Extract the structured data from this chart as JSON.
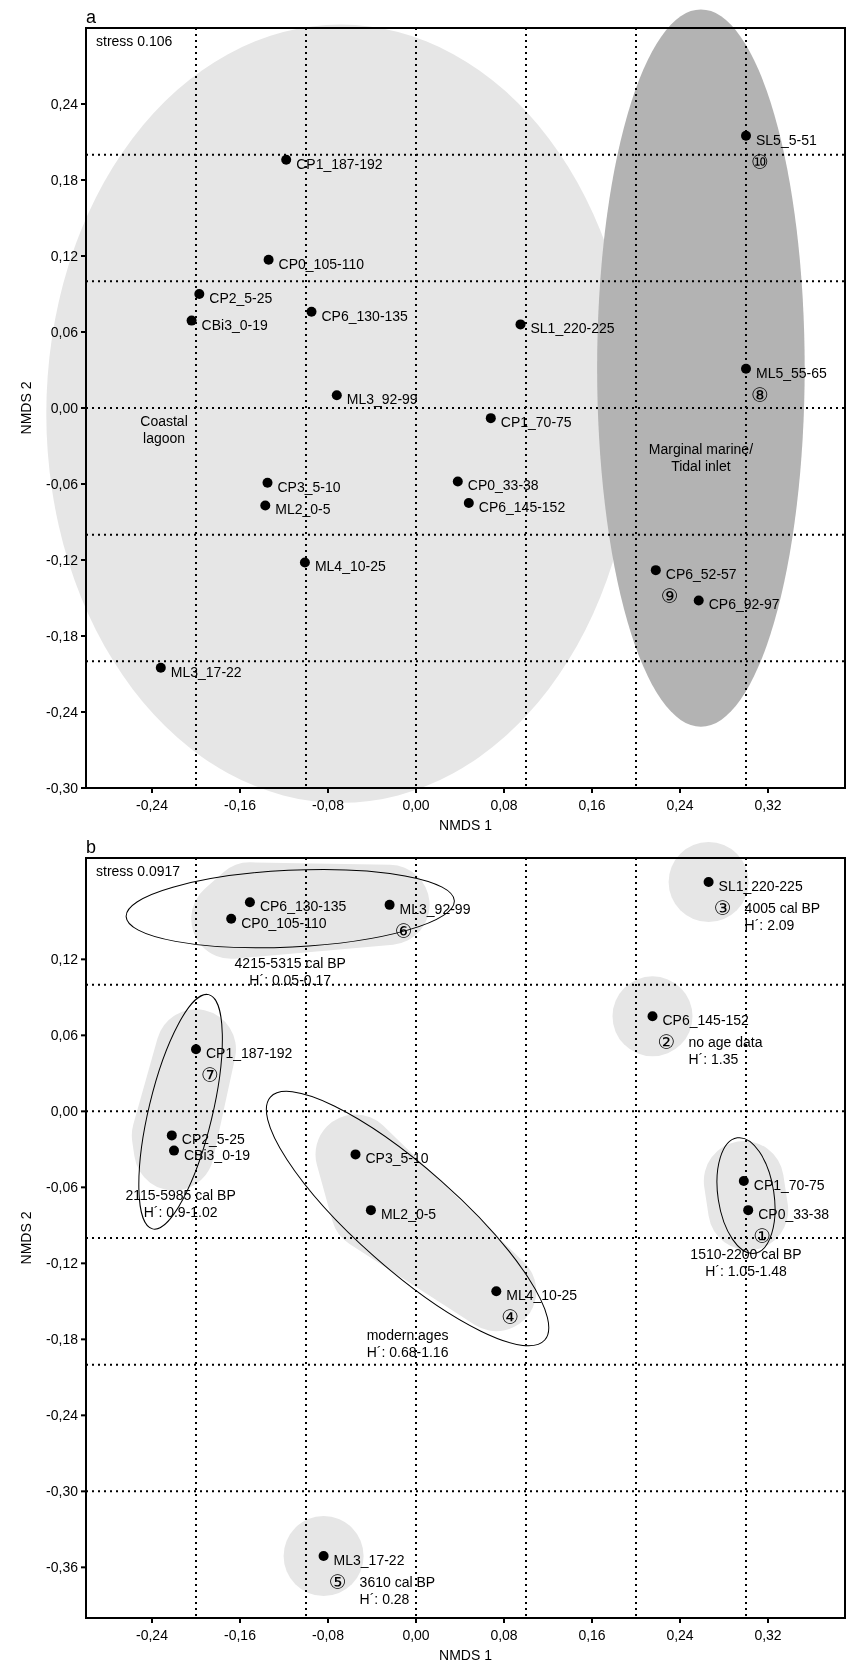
{
  "chart_data": [
    {
      "type": "scatter",
      "title": "a",
      "xlabel": "NMDS 1",
      "ylabel": "NMDS 2",
      "xlim": [
        -0.3,
        0.39
      ],
      "ylim": [
        -0.3,
        0.3
      ],
      "xticks": [
        {
          "value": -0.24,
          "label": "-0,24"
        },
        {
          "value": -0.16,
          "label": "-0,16"
        },
        {
          "value": -0.08,
          "label": "-0,08"
        },
        {
          "value": 0,
          "label": "0,00"
        },
        {
          "value": 0.08,
          "label": "0,08"
        },
        {
          "value": 0.16,
          "label": "0,16"
        },
        {
          "value": 0.24,
          "label": "0,24"
        },
        {
          "value": 0.32,
          "label": "0,32"
        }
      ],
      "yticks": [
        {
          "value": -0.3,
          "label": "-0,30"
        },
        {
          "value": -0.24,
          "label": "-0,24"
        },
        {
          "value": -0.18,
          "label": "-0,18"
        },
        {
          "value": -0.12,
          "label": "-0,12"
        },
        {
          "value": -0.06,
          "label": "-0,06"
        },
        {
          "value": 0,
          "label": "0,00"
        },
        {
          "value": 0.06,
          "label": "0,06"
        },
        {
          "value": 0.12,
          "label": "0,12"
        },
        {
          "value": 0.18,
          "label": "0,18"
        },
        {
          "value": 0.24,
          "label": "0,24"
        }
      ],
      "marker": "circle",
      "series": [
        {
          "color": "#000000",
          "x": [
            -0.118,
            -0.134,
            -0.197,
            -0.204,
            -0.095,
            0.095,
            -0.072,
            0.068,
            -0.135,
            -0.137,
            0.038,
            0.048,
            -0.101,
            -0.232
          ],
          "values": [
            0.196,
            0.117,
            0.09,
            0.069,
            0.076,
            0.066,
            0.01,
            -0.008,
            -0.059,
            -0.077,
            -0.058,
            -0.075,
            -0.122,
            -0.205
          ],
          "value_labels": [
            "CP1_187-192",
            "CP0_105-110",
            "CP2_5-25",
            "CBi3_0-19",
            "CP6_130-135",
            "SL1_220-225",
            "ML3_92-99",
            "CP1_70-75",
            "CP3_5-10",
            "ML2_0-5",
            "CP0_33-38",
            "CP6_145-152",
            "ML4_10-25",
            "ML3_17-22"
          ]
        },
        {
          "name": "⑩",
          "color": "#000000",
          "x": [
            0.3
          ],
          "values": [
            0.215
          ],
          "value_labels": [
            "SL5_5-51"
          ]
        },
        {
          "name": "⑧",
          "color": "#000000",
          "x": [
            0.3
          ],
          "values": [
            0.031
          ],
          "value_labels": [
            "ML5_55-65"
          ]
        },
        {
          "name": "⑨",
          "color": "#000000",
          "x": [
            0.218,
            0.257
          ],
          "values": [
            -0.128,
            -0.152
          ],
          "value_labels": [
            "CP6_52-57",
            "CP6_92-97"
          ]
        }
      ],
      "ref_lines": [
        {
          "axis": "x",
          "value": -0.2,
          "line_style": "dotted",
          "color": "#000000"
        },
        {
          "axis": "x",
          "value": -0.1,
          "line_style": "dotted",
          "color": "#000000"
        },
        {
          "axis": "x",
          "value": 0,
          "line_style": "dotted",
          "color": "#000000"
        },
        {
          "axis": "x",
          "value": 0.1,
          "line_style": "dotted",
          "color": "#000000"
        },
        {
          "axis": "x",
          "value": 0.2,
          "line_style": "dotted",
          "color": "#000000"
        },
        {
          "axis": "x",
          "value": 0.3,
          "line_style": "dotted",
          "color": "#000000"
        },
        {
          "axis": "y",
          "value": -0.2,
          "line_style": "dotted",
          "color": "#000000"
        },
        {
          "axis": "y",
          "value": -0.1,
          "line_style": "dotted",
          "color": "#000000"
        },
        {
          "axis": "y",
          "value": 0,
          "line_style": "dotted",
          "color": "#000000"
        },
        {
          "axis": "y",
          "value": 0.1,
          "line_style": "dotted",
          "color": "#000000"
        },
        {
          "axis": "y",
          "value": 0.2,
          "line_style": "dotted",
          "color": "#000000"
        }
      ],
      "annotations": [
        "stress 0.106",
        "Coastal\nlagoon",
        "Marginal marine/\nTidal inlet"
      ]
    },
    {
      "type": "scatter",
      "title": "b",
      "xlabel": "NMDS 1",
      "ylabel": "NMDS 2",
      "xlim": [
        -0.3,
        0.39
      ],
      "ylim": [
        -0.4,
        0.2
      ],
      "xticks": [
        {
          "value": -0.24,
          "label": "-0,24"
        },
        {
          "value": -0.16,
          "label": "-0,16"
        },
        {
          "value": -0.08,
          "label": "-0,08"
        },
        {
          "value": 0,
          "label": "0,00"
        },
        {
          "value": 0.08,
          "label": "0,08"
        },
        {
          "value": 0.16,
          "label": "0,16"
        },
        {
          "value": 0.24,
          "label": "0,24"
        },
        {
          "value": 0.32,
          "label": "0,32"
        }
      ],
      "yticks": [
        {
          "value": -0.36,
          "label": "-0,36"
        },
        {
          "value": -0.3,
          "label": "-0,30"
        },
        {
          "value": -0.24,
          "label": "-0,24"
        },
        {
          "value": -0.18,
          "label": "-0,18"
        },
        {
          "value": -0.12,
          "label": "-0,12"
        },
        {
          "value": -0.06,
          "label": "-0,06"
        },
        {
          "value": 0,
          "label": "0,00"
        },
        {
          "value": 0.06,
          "label": "0,06"
        },
        {
          "value": 0.12,
          "label": "0,12"
        }
      ],
      "marker": "circle",
      "series": [
        {
          "name": "①",
          "color": "#000000",
          "x": [
            0.302,
            0.298
          ],
          "values": [
            -0.078,
            -0.055
          ],
          "value_labels": [
            "CP0_33-38",
            "CP1_70-75"
          ]
        },
        {
          "name": "②",
          "color": "#000000",
          "x": [
            0.215
          ],
          "values": [
            0.075
          ],
          "value_labels": [
            "CP6_145-152"
          ]
        },
        {
          "name": "③",
          "color": "#000000",
          "x": [
            0.266
          ],
          "values": [
            0.181
          ],
          "value_labels": [
            "SL1_220-225"
          ]
        },
        {
          "name": "④",
          "color": "#000000",
          "x": [
            0.073,
            -0.055,
            -0.041
          ],
          "values": [
            -0.142,
            -0.034,
            -0.078
          ],
          "value_labels": [
            "ML4_10-25",
            "CP3_5-10",
            "ML2_0-5"
          ]
        },
        {
          "name": "⑤",
          "color": "#000000",
          "x": [
            -0.084
          ],
          "values": [
            -0.351
          ],
          "value_labels": [
            "ML3_17-22"
          ]
        },
        {
          "name": "⑥",
          "color": "#000000",
          "x": [
            -0.024,
            -0.151,
            -0.168
          ],
          "values": [
            0.163,
            0.165,
            0.152
          ],
          "value_labels": [
            "ML3_92-99",
            "CP6_130-135",
            "CP0_105-110"
          ]
        },
        {
          "name": "⑦",
          "color": "#000000",
          "x": [
            -0.2,
            -0.222,
            -0.22
          ],
          "values": [
            0.049,
            -0.019,
            -0.031
          ],
          "value_labels": [
            "CP1_187-192",
            "CP2_5-25",
            "CBi3_0-19"
          ]
        }
      ],
      "ref_lines": [
        {
          "axis": "x",
          "value": -0.2,
          "line_style": "dotted",
          "color": "#000000"
        },
        {
          "axis": "x",
          "value": -0.1,
          "line_style": "dotted",
          "color": "#000000"
        },
        {
          "axis": "x",
          "value": 0,
          "line_style": "dotted",
          "color": "#000000"
        },
        {
          "axis": "x",
          "value": 0.1,
          "line_style": "dotted",
          "color": "#000000"
        },
        {
          "axis": "x",
          "value": 0.2,
          "line_style": "dotted",
          "color": "#000000"
        },
        {
          "axis": "x",
          "value": 0.3,
          "line_style": "dotted",
          "color": "#000000"
        },
        {
          "axis": "y",
          "value": -0.3,
          "line_style": "dotted",
          "color": "#000000"
        },
        {
          "axis": "y",
          "value": -0.2,
          "line_style": "dotted",
          "color": "#000000"
        },
        {
          "axis": "y",
          "value": -0.1,
          "line_style": "dotted",
          "color": "#000000"
        },
        {
          "axis": "y",
          "value": 0,
          "line_style": "dotted",
          "color": "#000000"
        },
        {
          "axis": "y",
          "value": 0.1,
          "line_style": "dotted",
          "color": "#000000"
        }
      ],
      "annotations": [
        "stress 0.0917",
        "1510-2200 cal BP\nH´: 1.05-1.48",
        "no age data\nH´: 1.35",
        "4005 cal BP\nH´: 2.09",
        "modern ages\nH´: 0.68-1.16",
        "3610 cal BP\nH´: 0.28",
        "4215-5315 cal BP\nH´: 0.05-0.17",
        "2115-5985 cal BP\nH´: 0.9-1.02"
      ]
    }
  ]
}
